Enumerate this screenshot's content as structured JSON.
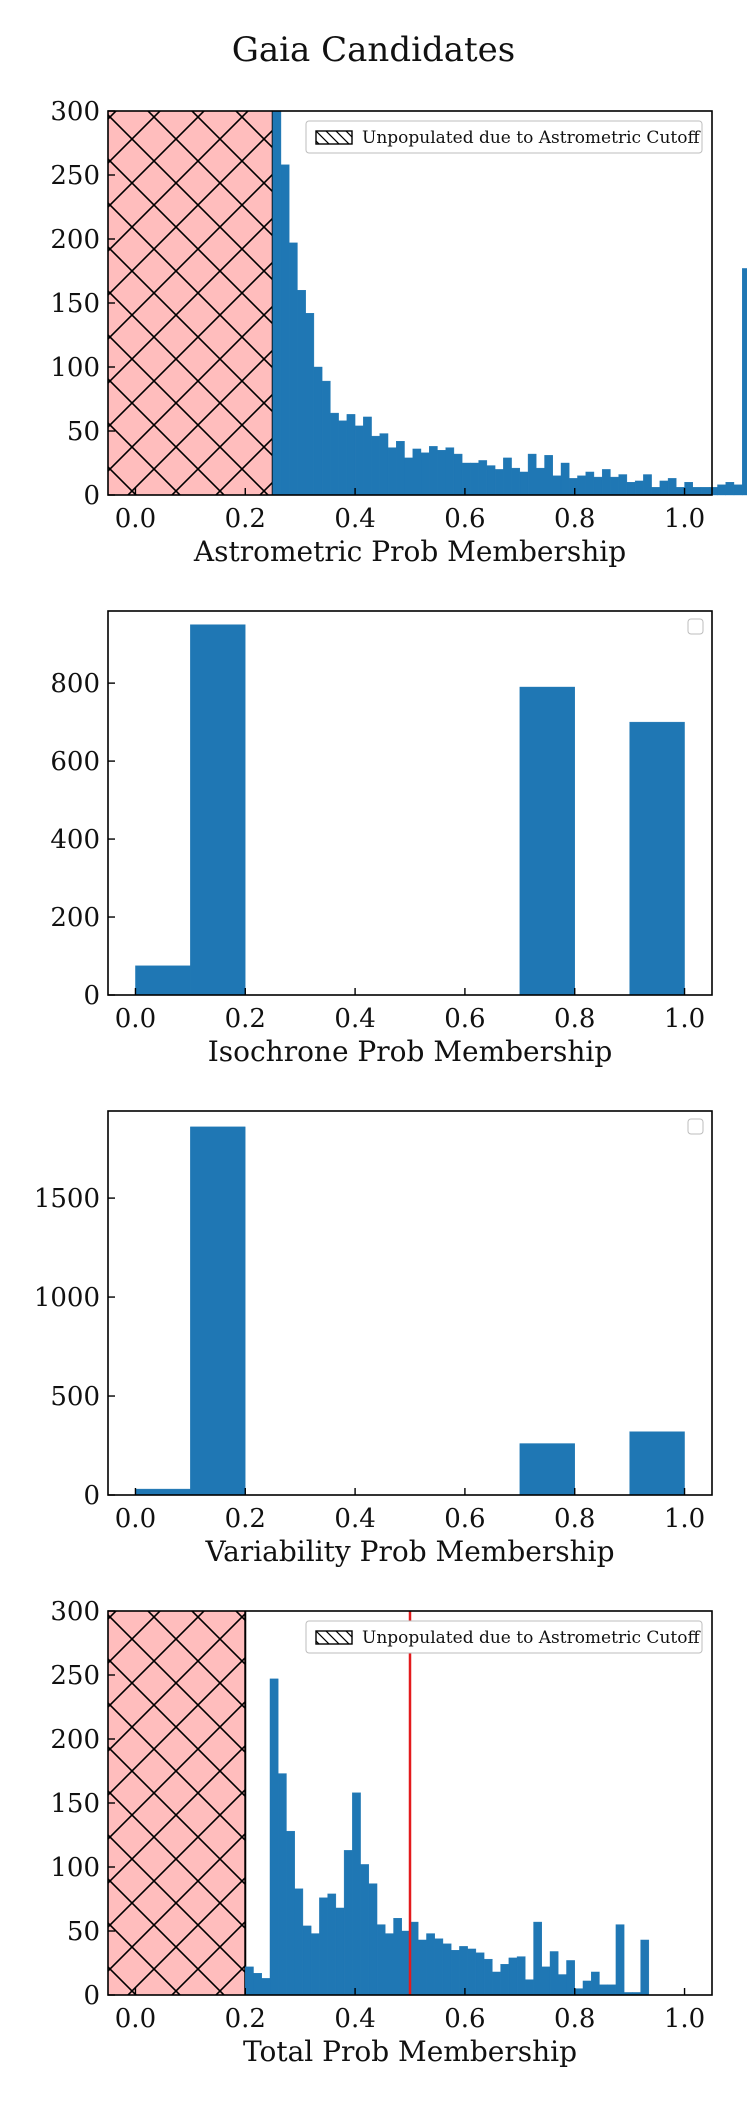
{
  "figure": {
    "title": "Gaia Candidates"
  },
  "colors": {
    "bar": "#1f77b4",
    "cutoff_fill": "#ffbdbd",
    "hatch": "#000000",
    "threshold_line": "#e31a1c"
  },
  "chart_data": [
    {
      "type": "bar",
      "xlabel": "Astrometric Prob Membership",
      "ylabel": "",
      "xlim": [
        -0.05,
        1.05
      ],
      "ylim": [
        0,
        300
      ],
      "xticks": [
        "0.0",
        "0.2",
        "0.4",
        "0.6",
        "0.8",
        "1.0"
      ],
      "yticks": [
        "0",
        "50",
        "100",
        "150",
        "200",
        "250",
        "300"
      ],
      "bin_width": 0.015,
      "bin_start": 0.25,
      "values": [
        300,
        258,
        197,
        160,
        142,
        100,
        89,
        64,
        58,
        63,
        54,
        61,
        46,
        48,
        37,
        42,
        29,
        36,
        33,
        38,
        35,
        37,
        32,
        25,
        25,
        27,
        23,
        20,
        29,
        21,
        18,
        32,
        21,
        31,
        15,
        25,
        13,
        15,
        18,
        14,
        20,
        14,
        16,
        10,
        11,
        16,
        6,
        11,
        13,
        6,
        10,
        6,
        6,
        6,
        8,
        10,
        8,
        177
      ],
      "cutoff": {
        "x0": -0.05,
        "x1": 0.25,
        "legend": "Unpopulated due to Astrometric Cutoff"
      },
      "legend_position": "upper right"
    },
    {
      "type": "bar",
      "xlabel": "Isochrone Prob Membership",
      "ylabel": "",
      "xlim": [
        -0.05,
        1.05
      ],
      "ylim": [
        0,
        985
      ],
      "xticks": [
        "0.0",
        "0.2",
        "0.4",
        "0.6",
        "0.8",
        "1.0"
      ],
      "yticks": [
        "0",
        "200",
        "400",
        "600",
        "800"
      ],
      "bin_width": 0.1,
      "bin_start": 0.0,
      "values": [
        75,
        950,
        0,
        0,
        0,
        0,
        0,
        790,
        0,
        700
      ],
      "legend_position": "upper right"
    },
    {
      "type": "bar",
      "xlabel": "Variability Prob Membership",
      "ylabel": "",
      "xlim": [
        -0.05,
        1.05
      ],
      "ylim": [
        0,
        1940
      ],
      "xticks": [
        "0.0",
        "0.2",
        "0.4",
        "0.6",
        "0.8",
        "1.0"
      ],
      "yticks": [
        "0",
        "500",
        "1000",
        "1500"
      ],
      "bin_width": 0.1,
      "bin_start": 0.0,
      "values": [
        30,
        1860,
        0,
        0,
        0,
        0,
        0,
        260,
        0,
        320
      ],
      "legend_position": "upper right"
    },
    {
      "type": "bar",
      "xlabel": "Total Prob Membership",
      "ylabel": "",
      "xlim": [
        -0.05,
        1.05
      ],
      "ylim": [
        0,
        300
      ],
      "xticks": [
        "0.0",
        "0.2",
        "0.4",
        "0.6",
        "0.8",
        "1.0"
      ],
      "yticks": [
        "0",
        "50",
        "100",
        "150",
        "200",
        "250",
        "300"
      ],
      "bin_width": 0.015,
      "bin_start": 0.2,
      "values": [
        22,
        17,
        13,
        247,
        173,
        128,
        83,
        54,
        48,
        76,
        79,
        68,
        113,
        158,
        102,
        87,
        55,
        48,
        60,
        50,
        57,
        43,
        48,
        44,
        40,
        35,
        38,
        36,
        33,
        28,
        18,
        24,
        29,
        30,
        12,
        57,
        22,
        34,
        16,
        27,
        5,
        11,
        18,
        8,
        8,
        55,
        2,
        2,
        43
      ],
      "cutoff": {
        "x0": -0.05,
        "x1": 0.2,
        "legend": "Unpopulated due to Astrometric Cutoff"
      },
      "vline": 0.5,
      "legend_position": "upper right"
    }
  ]
}
